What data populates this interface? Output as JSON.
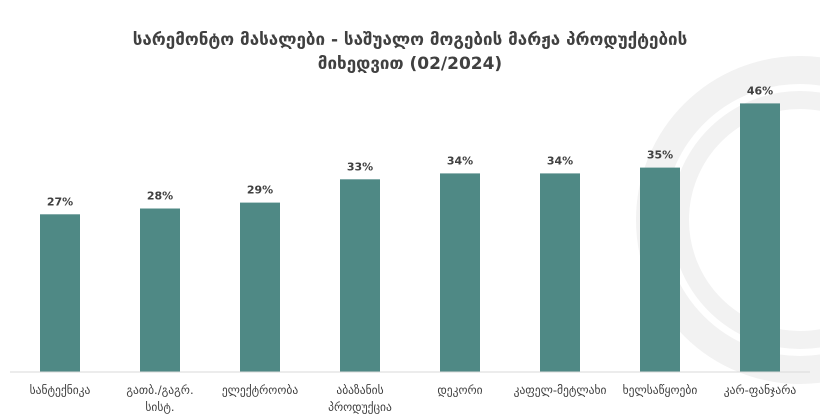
{
  "colors": {
    "bar": "#4f8985",
    "text": "#404040",
    "axis": "#d9d9d9",
    "watermark": "#f2f2f2"
  },
  "chart_data": {
    "type": "bar",
    "title": "სარემონტო მასალები - საშუალო მოგების მარჟა პროდუქტების მიხედვით (02/2024)",
    "title_lines": [
      "სარემონტო მასალები - საშუალო მოგების მარჟა პროდუქტების",
      "მიხედვით (02/2024)"
    ],
    "categories": [
      "სანტექნიკა",
      "გათბ./გაგრ. სისტ.",
      "ელექტროობა",
      "აბაზანის პროდუქცია",
      "დეკორი",
      "კაფელ-მეტლახი",
      "ხელსაწყოები",
      "კარ-ფანჯარა"
    ],
    "category_lines": [
      [
        "სანტექნიკა"
      ],
      [
        "გათბ./გაგრ.",
        "სისტ."
      ],
      [
        "ელექტროობა"
      ],
      [
        "აბაზანის",
        "პროდუქცია"
      ],
      [
        "დეკორი"
      ],
      [
        "კაფელ-მეტლახი"
      ],
      [
        "ხელსაწყოები"
      ],
      [
        "კარ-ფანჯარა"
      ]
    ],
    "values": [
      27,
      28,
      29,
      33,
      34,
      34,
      35,
      46
    ],
    "value_labels": [
      "27%",
      "28%",
      "29%",
      "33%",
      "34%",
      "34%",
      "35%",
      "46%"
    ],
    "unit": "%",
    "ylim": [
      0,
      50
    ],
    "grid": false,
    "xlabel": "",
    "ylabel": ""
  }
}
